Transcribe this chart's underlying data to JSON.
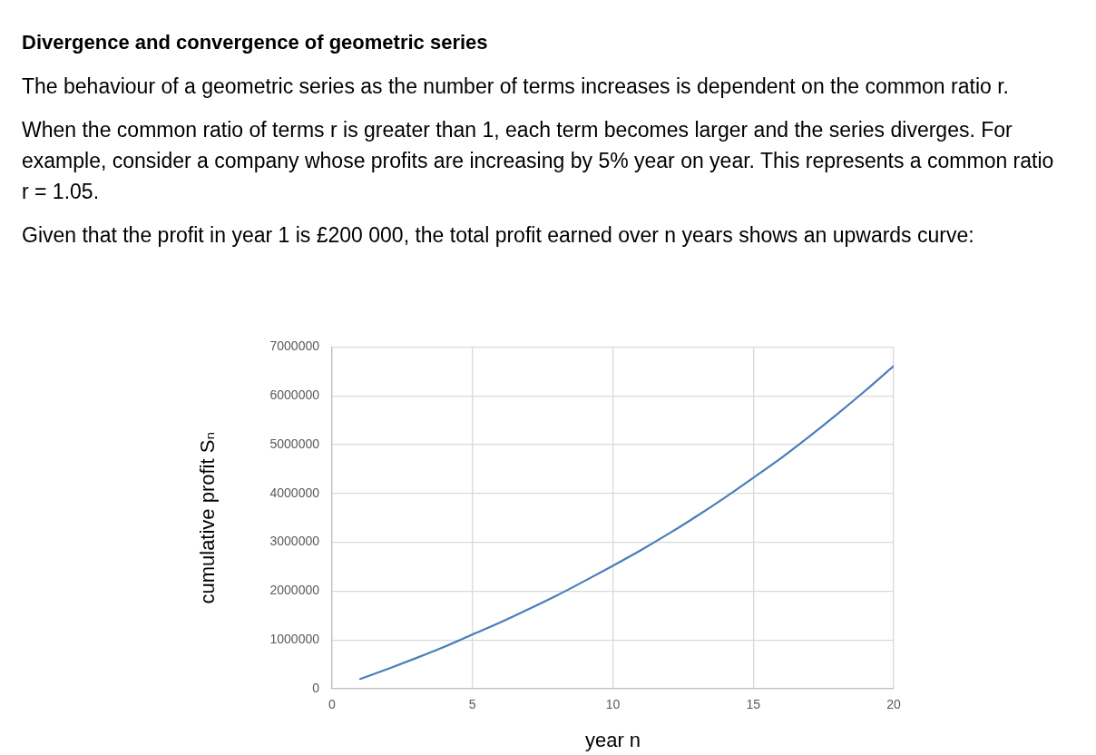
{
  "chart_data": {
    "type": "line",
    "title": "Divergence and convergence of geometric series",
    "annotations": [
      "The behaviour of a geometric series as the number of terms increases is dependent on the common ratio r.",
      "When the common ratio of terms r is greater than 1, each term becomes larger and the series diverges.  For example, consider a company whose profits are increasing by 5% year on year.  This represents a common ratio r = 1.05.",
      "Given that the profit in year 1 is £200 000, the total profit earned over n years shows an upwards curve:"
    ],
    "xlabel": "year n",
    "ylabel": "cumulative profit Sₙ",
    "x": [
      1,
      2,
      3,
      4,
      5,
      6,
      7,
      8,
      9,
      10,
      11,
      12,
      13,
      14,
      15,
      16,
      17,
      18,
      19,
      20
    ],
    "series": [
      {
        "color": "#4a7ebb",
        "values": [
          200000,
          410000,
          630000,
          860000,
          1110000,
          1360000,
          1630000,
          1910000,
          2210000,
          2520000,
          2840000,
          3180000,
          3540000,
          3920000,
          4320000,
          4730000,
          5170000,
          5630000,
          6110000,
          6610000
        ]
      }
    ],
    "xlim": [
      0,
      20
    ],
    "xticks": [
      0,
      5,
      10,
      15,
      20
    ],
    "ylim": [
      0,
      7000000
    ],
    "yticks": [
      0,
      1000000,
      2000000,
      3000000,
      4000000,
      5000000,
      6000000,
      7000000
    ],
    "grid": true,
    "legend": false,
    "marker": "none",
    "line_style": "solid"
  }
}
